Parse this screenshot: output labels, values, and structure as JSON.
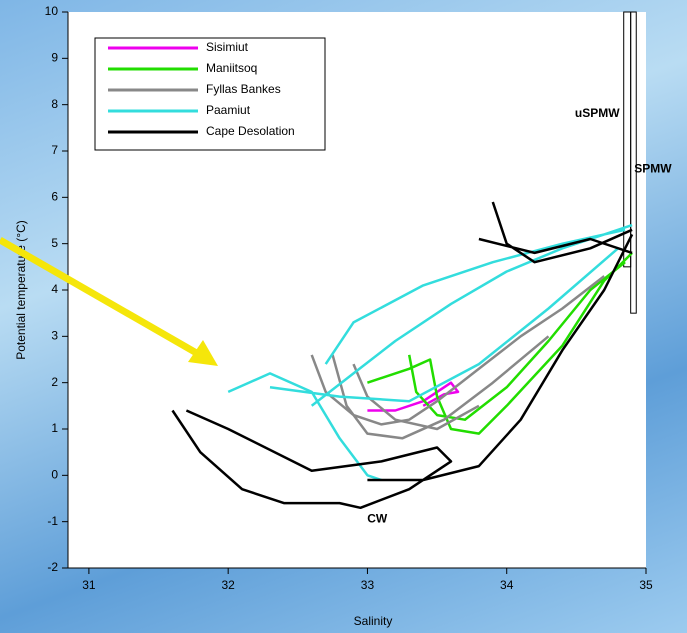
{
  "chart_data": {
    "type": "line",
    "xlabel": "Salinity",
    "ylabel": "Potential temperature (°C)",
    "xlim": [
      30.85,
      35
    ],
    "ylim": [
      -2,
      10
    ],
    "xticks": [
      31,
      32,
      33,
      34,
      35
    ],
    "yticks": [
      -2,
      -1,
      0,
      1,
      2,
      3,
      4,
      5,
      6,
      7,
      8,
      9,
      10
    ],
    "legend": "upper left",
    "annotations": [
      {
        "text": "uSPMW",
        "x": 34.65,
        "y": 7.8
      },
      {
        "text": "SPMW",
        "x": 35.05,
        "y": 6.6
      },
      {
        "text": "CW",
        "x": 33.07,
        "y": -0.95
      }
    ],
    "regions": [
      {
        "xlim": [
          34.84,
          34.89
        ],
        "ylim": [
          4.5,
          10
        ]
      },
      {
        "xlim": [
          34.89,
          34.93
        ],
        "ylim": [
          3.5,
          10
        ]
      }
    ],
    "series": [
      {
        "name": "Sisimiut",
        "color": "#ee00ee",
        "x": [
          33.0,
          33.2,
          33.4,
          33.5,
          33.6,
          33.65,
          33.55,
          33.4
        ],
        "values": [
          1.4,
          1.4,
          1.6,
          1.8,
          2.0,
          1.8,
          1.75,
          1.5
        ]
      },
      {
        "name": "Maniitsoq",
        "color": "#22dd00",
        "x": [
          33.0,
          33.3,
          33.45,
          33.5,
          33.6,
          33.8,
          34.0,
          34.4,
          34.7,
          34.9,
          null,
          33.3,
          33.35,
          33.5,
          33.7,
          34.0,
          34.3,
          34.6,
          34.85
        ],
        "values": [
          2.0,
          2.3,
          2.5,
          1.7,
          1.0,
          0.9,
          1.5,
          2.8,
          4.2,
          4.8,
          null,
          2.6,
          1.8,
          1.3,
          1.2,
          1.9,
          2.9,
          4.0,
          4.6
        ]
      },
      {
        "name": "Fyllas Bankes",
        "color": "#888888",
        "x": [
          32.6,
          32.7,
          32.9,
          33.1,
          33.3,
          33.5,
          33.8,
          34.1,
          34.4,
          34.7,
          null,
          32.75,
          32.85,
          33.0,
          33.25,
          33.55,
          33.9,
          34.3,
          null,
          32.9,
          33.0,
          33.2,
          33.5,
          33.8
        ],
        "values": [
          2.6,
          1.8,
          1.3,
          1.1,
          1.2,
          1.6,
          2.3,
          3.0,
          3.6,
          4.3,
          null,
          2.6,
          1.5,
          0.9,
          0.8,
          1.2,
          2.0,
          3.0,
          null,
          2.4,
          1.7,
          1.2,
          1.0,
          1.5
        ]
      },
      {
        "name": "Paamiut",
        "color": "#33dddd",
        "x": [
          32.0,
          32.3,
          32.6,
          32.8,
          33.0,
          33.1,
          null,
          32.6,
          32.9,
          33.2,
          33.6,
          34.0,
          34.4,
          34.7,
          34.9,
          null,
          32.7,
          32.9,
          33.4,
          33.9,
          34.4,
          34.85,
          null,
          32.3,
          32.8,
          33.3,
          33.8,
          34.3,
          34.8
        ],
        "values": [
          1.8,
          2.2,
          1.8,
          0.8,
          0.0,
          -0.1,
          null,
          1.5,
          2.2,
          2.9,
          3.7,
          4.4,
          4.9,
          5.2,
          5.4,
          null,
          2.4,
          3.3,
          4.1,
          4.6,
          5.0,
          5.3,
          null,
          1.9,
          1.7,
          1.6,
          2.4,
          3.6,
          4.9
        ]
      },
      {
        "name": "Cape Desolation",
        "color": "#000000",
        "x": [
          31.6,
          31.8,
          32.1,
          32.4,
          32.8,
          32.95,
          33.3,
          33.6,
          33.5,
          33.1,
          32.6,
          32.0,
          31.7,
          null,
          33.0,
          33.4,
          33.8,
          34.1,
          34.4,
          34.7,
          34.9,
          null,
          33.9,
          34.0,
          34.2,
          34.6,
          34.9,
          null,
          33.8,
          34.2,
          34.6,
          34.9
        ],
        "values": [
          1.4,
          0.5,
          -0.3,
          -0.6,
          -0.6,
          -0.7,
          -0.3,
          0.3,
          0.6,
          0.3,
          0.1,
          1.0,
          1.4,
          null,
          -0.1,
          -0.1,
          0.2,
          1.2,
          2.7,
          4.0,
          5.2,
          null,
          5.9,
          5.0,
          4.6,
          4.9,
          5.3,
          null,
          5.1,
          4.8,
          5.1,
          4.8
        ]
      }
    ]
  }
}
